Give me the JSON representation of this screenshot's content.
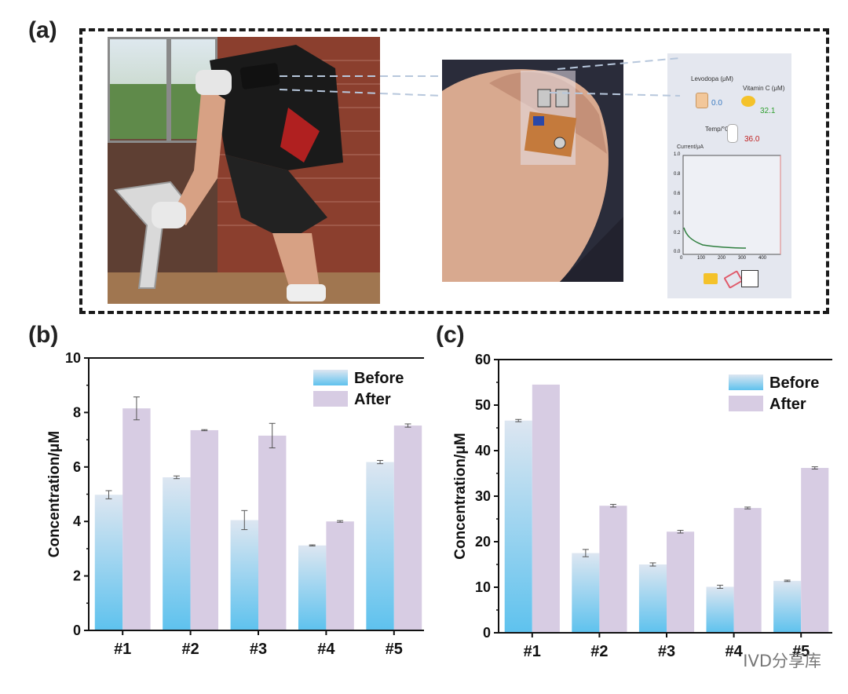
{
  "panels": {
    "a": "(a)",
    "b": "(b)",
    "c": "(c)"
  },
  "phone": {
    "levodopa_label": "Levodopa (μM)",
    "levodopa_value": "0.0",
    "vitc_label": "Vitamin C (μM)",
    "vitc_value": "32.1",
    "temp_label": "Temp/°C",
    "temp_value": "36.0",
    "plot_ylabel": "Current/μA",
    "plot_yticks": [
      "1.0",
      "0.8",
      "0.6",
      "0.4",
      "0.2",
      "0.0"
    ],
    "plot_xticks": [
      "0",
      "100",
      "200",
      "300",
      "400"
    ]
  },
  "watermark": "IVD分享库",
  "colors": {
    "before_top": "#dde6f1",
    "before_bottom": "#5ec2ee",
    "after": "#d7cce3",
    "error": "#555555"
  },
  "chart_data": [
    {
      "type": "bar",
      "ylabel": "Concentration/μM",
      "ylim": [
        0,
        10
      ],
      "yticks": [
        "0",
        "2",
        "4",
        "6",
        "8",
        "10"
      ],
      "categories": [
        "#1",
        "#2",
        "#3",
        "#4",
        "#5"
      ],
      "series": [
        {
          "name": "Before",
          "values": [
            4.98,
            5.62,
            4.05,
            3.12,
            6.18
          ],
          "errors": [
            0.15,
            0.05,
            0.35,
            0.02,
            0.06
          ]
        },
        {
          "name": "After",
          "values": [
            8.15,
            7.35,
            7.15,
            4.0,
            7.52
          ],
          "errors": [
            0.42,
            0.02,
            0.45,
            0.03,
            0.06
          ]
        }
      ],
      "legend": "top-right"
    },
    {
      "type": "bar",
      "ylabel": "Concentration/μM",
      "ylim": [
        0,
        60
      ],
      "yticks": [
        "0",
        "10",
        "20",
        "30",
        "40",
        "50",
        "60"
      ],
      "categories": [
        "#1",
        "#2",
        "#3",
        "#4",
        "#5"
      ],
      "series": [
        {
          "name": "Before",
          "values": [
            46.6,
            17.5,
            15.0,
            10.1,
            11.4
          ],
          "errors": [
            0.25,
            0.8,
            0.35,
            0.35,
            0.15
          ]
        },
        {
          "name": "After",
          "values": [
            54.5,
            27.9,
            22.2,
            27.4,
            36.2
          ],
          "errors": [
            0,
            0.3,
            0.3,
            0.2,
            0.25
          ]
        }
      ],
      "legend": "top-right"
    }
  ]
}
